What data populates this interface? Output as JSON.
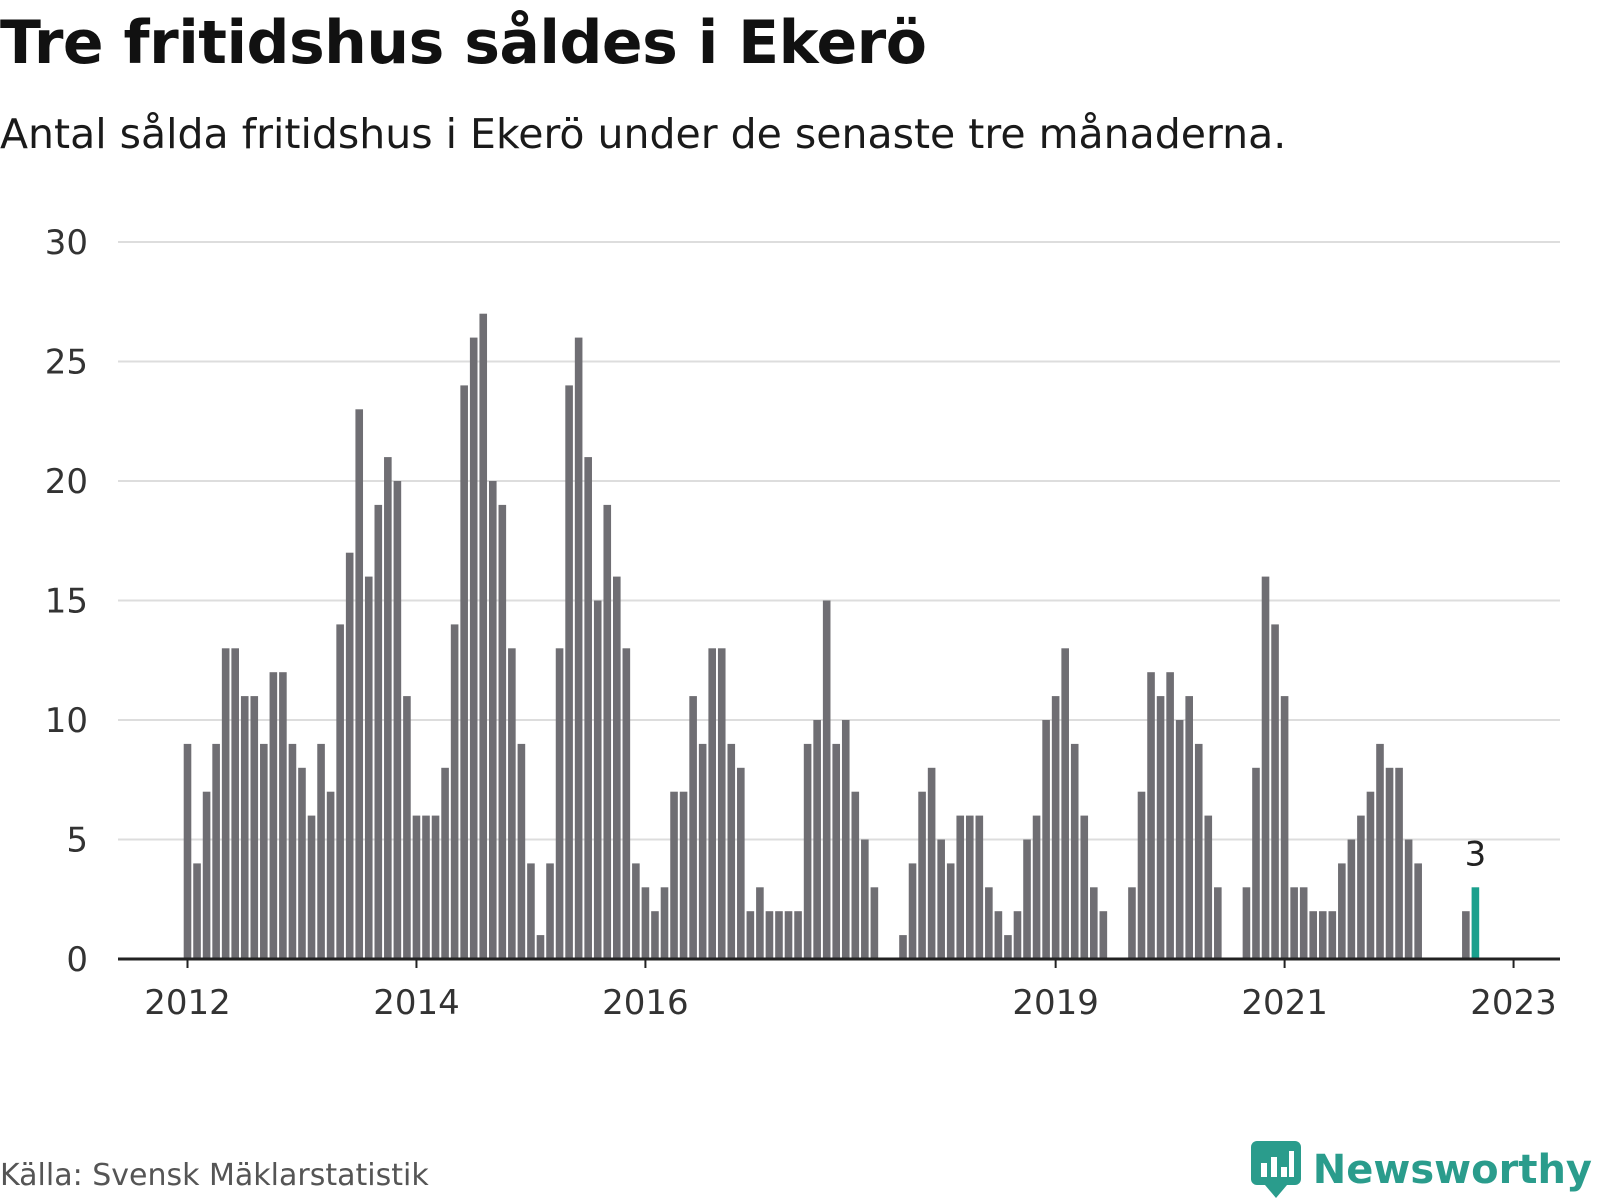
{
  "title": "Tre fritidshus såldes i Ekerö",
  "subtitle": "Antal sålda fritidshus i Ekerö under de senaste tre månaderna.",
  "source": "Källa: Svensk Mäklarstatistik",
  "brand": "Newsworthy",
  "colors": {
    "bar": "#6f6e73",
    "highlight": "#1aa08d",
    "grid": "#dddddd",
    "axis": "#222222",
    "brand": "#2a9c8c"
  },
  "chart_data": {
    "type": "bar",
    "start_month": "2012-01",
    "ylim": [
      0,
      30
    ],
    "yticks": [
      "0",
      "5",
      "10",
      "15",
      "20",
      "25",
      "30"
    ],
    "xticks": [
      {
        "label": "2012",
        "month": "2012-01"
      },
      {
        "label": "2014",
        "month": "2014-01"
      },
      {
        "label": "2016",
        "month": "2016-01"
      },
      {
        "label": "2019",
        "month": "2019-08"
      },
      {
        "label": "2021",
        "month": "2021-08"
      },
      {
        "label": "2023",
        "month": "2023-08"
      }
    ],
    "values": [
      9,
      4,
      7,
      9,
      13,
      13,
      11,
      11,
      9,
      12,
      12,
      9,
      8,
      6,
      9,
      7,
      14,
      17,
      23,
      16,
      19,
      21,
      20,
      11,
      6,
      6,
      6,
      8,
      14,
      24,
      26,
      27,
      20,
      19,
      13,
      9,
      4,
      1,
      4,
      13,
      24,
      26,
      21,
      15,
      19,
      16,
      13,
      4,
      3,
      2,
      3,
      7,
      7,
      11,
      9,
      13,
      13,
      9,
      8,
      2,
      3,
      2,
      2,
      2,
      2,
      9,
      10,
      15,
      9,
      10,
      7,
      5,
      3,
      0,
      0,
      1,
      4,
      7,
      8,
      5,
      4,
      6,
      6,
      6,
      3,
      2,
      1,
      2,
      5,
      6,
      10,
      11,
      13,
      9,
      6,
      3,
      2,
      0,
      0,
      3,
      7,
      12,
      11,
      12,
      10,
      11,
      9,
      6,
      3,
      0,
      0,
      3,
      8,
      16,
      14,
      11,
      3,
      3,
      2,
      2,
      2,
      4,
      5,
      6,
      7,
      9,
      8,
      8,
      5,
      4,
      0,
      0,
      0,
      0,
      2,
      3
    ],
    "highlight_index": 135,
    "highlight_label": "3"
  }
}
